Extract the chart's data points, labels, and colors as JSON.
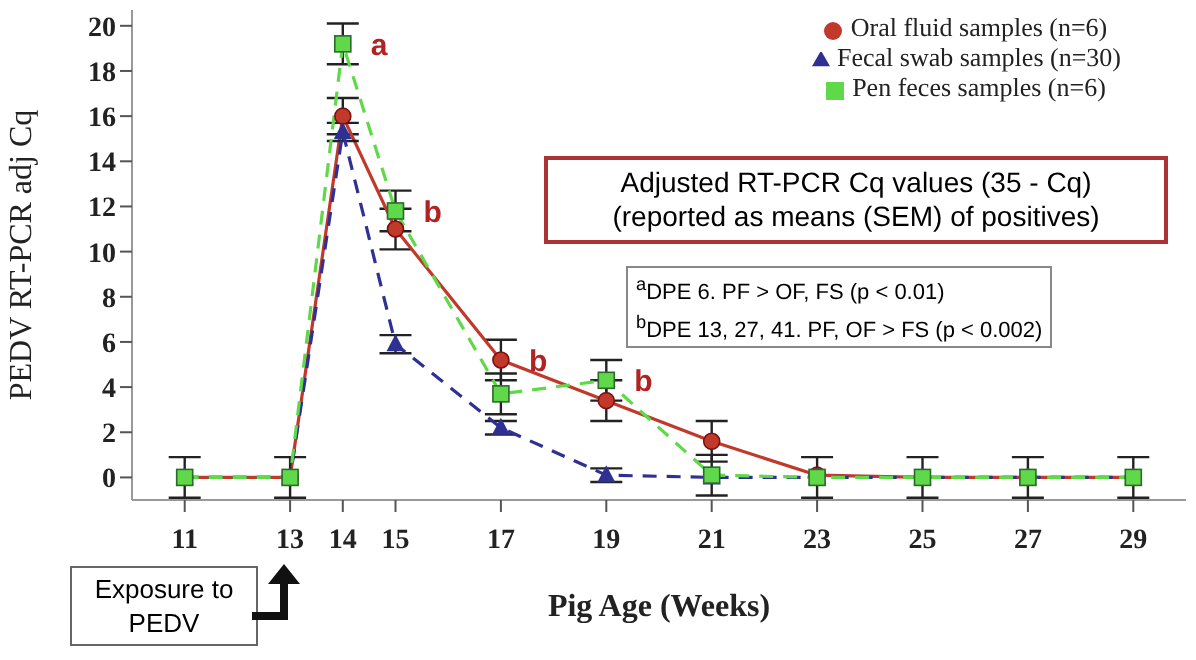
{
  "chart_data": {
    "type": "line",
    "xlabel": "Pig Age (Weeks)",
    "ylabel": "PEDV RT-PCR adj Cq",
    "x": [
      11,
      13,
      14,
      15,
      17,
      19,
      21,
      23,
      25,
      27,
      29
    ],
    "xlim": [
      10,
      30
    ],
    "xticks": [
      11,
      13,
      14,
      15,
      17,
      19,
      21,
      23,
      25,
      27,
      29
    ],
    "ylim": [
      -1,
      20.7
    ],
    "yticks": [
      0,
      2,
      4,
      6,
      8,
      10,
      12,
      14,
      16,
      18,
      20
    ],
    "grid": false,
    "legend": "top right",
    "series": [
      {
        "name": "Oral fluid samples (n=6)",
        "color": "#c0392b",
        "marker": "circle",
        "line_style": "solid",
        "values": [
          0,
          0,
          16,
          11,
          5.2,
          3.4,
          1.6,
          0.1,
          0,
          0,
          0
        ],
        "errors": [
          null,
          null,
          0.8,
          0.9,
          0.9,
          0.9,
          0.9,
          null,
          null,
          null,
          null
        ]
      },
      {
        "name": "Fecal swab samples (n=30)",
        "color": "#2e3192",
        "marker": "triangle",
        "line_style": "dashed",
        "values": [
          0,
          0,
          15.3,
          5.9,
          2.2,
          0.1,
          0,
          0,
          0,
          0,
          0
        ],
        "errors": [
          null,
          null,
          0.4,
          0.4,
          0.3,
          0.3,
          null,
          null,
          null,
          null,
          null
        ]
      },
      {
        "name": "Pen feces samples (n=6)",
        "color": "#5fd94a",
        "marker": "square",
        "line_style": "dashed",
        "values": [
          0,
          0,
          19.2,
          11.8,
          3.7,
          4.3,
          0.1,
          0,
          0,
          0,
          0
        ],
        "errors": [
          0.9,
          0.9,
          0.9,
          0.9,
          0.9,
          0.9,
          0.9,
          0.9,
          0.9,
          0.9,
          0.9
        ]
      }
    ],
    "annotations": [
      "Adjusted RT-PCR Cq values (35 - Cq)\n(reported as means (SEM) of positives)",
      "$^{a}$DPE 6.  PF > OF, FS (p < 0.01)",
      "$^{b}$DPE 13, 27, 41.  PF, OF > FS (p < 0.002)",
      "Exposure to PEDV",
      {
        "text": "a",
        "x": 14,
        "y": 19.2
      },
      {
        "text": "b",
        "x": 15,
        "y": 11.8
      },
      {
        "text": "b",
        "x": 17,
        "y": 5.2
      },
      {
        "text": "b",
        "x": 19,
        "y": 4.3
      }
    ]
  }
}
